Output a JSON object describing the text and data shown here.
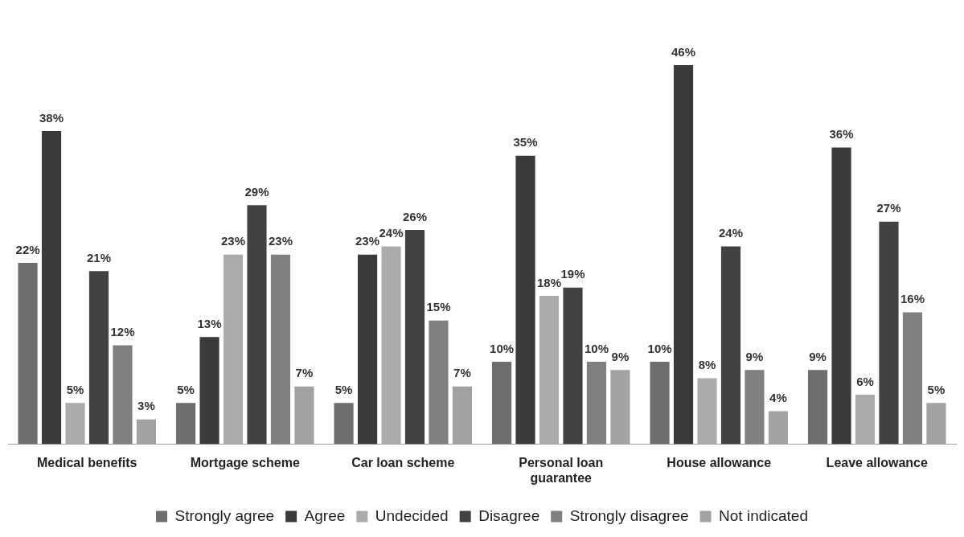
{
  "chart_data": {
    "type": "bar",
    "categories": [
      "Medical benefits",
      "Mortgage scheme",
      "Car loan scheme",
      "Personal loan guarantee",
      "House allowance",
      "Leave allowance"
    ],
    "series": [
      {
        "name": "Strongly agree",
        "color": "#6e6e6e",
        "values": [
          22,
          5,
          5,
          10,
          10,
          9
        ],
        "value_labels": [
          "22%",
          "5%",
          "5%",
          "10%",
          "10%",
          "9%"
        ]
      },
      {
        "name": "Agree",
        "color": "#3a3a3a",
        "values": [
          38,
          13,
          23,
          35,
          46,
          36
        ],
        "value_labels": [
          "38%",
          "13%",
          "23%",
          "35%",
          "46%",
          "36%"
        ]
      },
      {
        "name": "Undecided",
        "color": "#ababab",
        "values": [
          5,
          23,
          24,
          18,
          8,
          6
        ],
        "value_labels": [
          "5%",
          "23%",
          "24%",
          "18%",
          "8%",
          "6%"
        ]
      },
      {
        "name": "Disagree",
        "color": "#424242",
        "values": [
          21,
          29,
          26,
          19,
          24,
          27
        ],
        "value_labels": [
          "21%",
          "29%",
          "26%",
          "19%",
          "24%",
          "27%"
        ]
      },
      {
        "name": "Strongly disagree",
        "color": "#7f7f7f",
        "values": [
          12,
          23,
          15,
          10,
          9,
          16
        ],
        "value_labels": [
          "12%",
          "23%",
          "15%",
          "10%",
          "9%",
          "16%"
        ]
      },
      {
        "name": "Not indicated",
        "color": "#a2a2a2",
        "values": [
          3,
          7,
          7,
          9,
          4,
          5
        ],
        "value_labels": [
          "3%",
          "7%",
          "7%",
          "9%",
          "4%",
          "5%"
        ]
      }
    ],
    "legend": "bottom",
    "grid": false,
    "tick_labels": "x"
  }
}
